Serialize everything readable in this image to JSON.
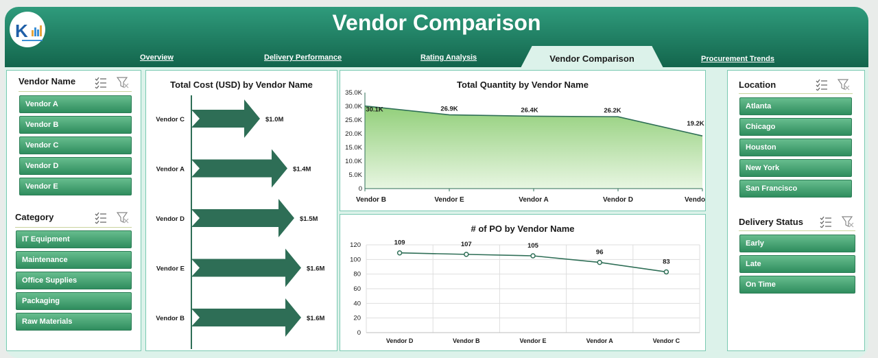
{
  "header": {
    "title": "Vendor Comparison"
  },
  "nav": [
    {
      "label": "Overview"
    },
    {
      "label": "Delivery Performance"
    },
    {
      "label": "Rating Analysis"
    },
    {
      "label": "Vendor Comparison",
      "active": true
    },
    {
      "label": "Procurement Trends"
    }
  ],
  "slicers": {
    "vendor_name": {
      "title": "Vendor Name",
      "items": [
        "Vendor A",
        "Vendor B",
        "Vendor C",
        "Vendor D",
        "Vendor E"
      ]
    },
    "category": {
      "title": "Category",
      "items": [
        "IT Equipment",
        "Maintenance",
        "Office Supplies",
        "Packaging",
        "Raw Materials"
      ]
    },
    "location": {
      "title": "Location",
      "items": [
        "Atlanta",
        "Chicago",
        "Houston",
        "New York",
        "San Francisco"
      ]
    },
    "delivery_status": {
      "title": "Delivery Status",
      "items": [
        "Early",
        "Late",
        "On Time"
      ]
    }
  },
  "icons": {
    "multi_select": "multi-select-icon",
    "clear_filter": "clear-filter-icon"
  },
  "colors": {
    "header_top": "#2f9b7c",
    "header_bottom": "#13654c",
    "arrow": "#2e6e56",
    "line": "#2e6e56",
    "area_fill": "#92cf7a",
    "button": "#3f9e6c"
  },
  "chart_data": [
    {
      "type": "bar",
      "title": "Total Cost (USD) by Vendor Name",
      "categories": [
        "Vendor C",
        "Vendor A",
        "Vendor D",
        "Vendor E",
        "Vendor B"
      ],
      "values": [
        1.0,
        1.4,
        1.5,
        1.6,
        1.6
      ],
      "data_labels": [
        "$1.0M",
        "$1.4M",
        "$1.5M",
        "$1.6M",
        "$1.6M"
      ],
      "orientation": "horizontal",
      "marker": "arrow"
    },
    {
      "type": "area",
      "title": "Total Quantity by Vendor Name",
      "categories": [
        "Vendor B",
        "Vendor E",
        "Vendor A",
        "Vendor D",
        "Vendor C"
      ],
      "values": [
        30100,
        26900,
        26400,
        26200,
        19200
      ],
      "data_labels": [
        "30.1K",
        "26.9K",
        "26.4K",
        "26.2K",
        "19.2K"
      ],
      "ylim": [
        0,
        35000
      ],
      "yticks": [
        "0",
        "5.0K",
        "10.0K",
        "15.0K",
        "20.0K",
        "25.0K",
        "30.0K",
        "35.0K"
      ],
      "grid": false
    },
    {
      "type": "line",
      "title": "# of PO by Vendor Name",
      "categories": [
        "Vendor D",
        "Vendor B",
        "Vendor E",
        "Vendor A",
        "Vendor C"
      ],
      "values": [
        109,
        107,
        105,
        96,
        83
      ],
      "data_labels": [
        "109",
        "107",
        "105",
        "96",
        "83"
      ],
      "ylim": [
        0,
        120
      ],
      "yticks": [
        "0",
        "20",
        "40",
        "60",
        "80",
        "100",
        "120"
      ],
      "grid": true
    }
  ]
}
